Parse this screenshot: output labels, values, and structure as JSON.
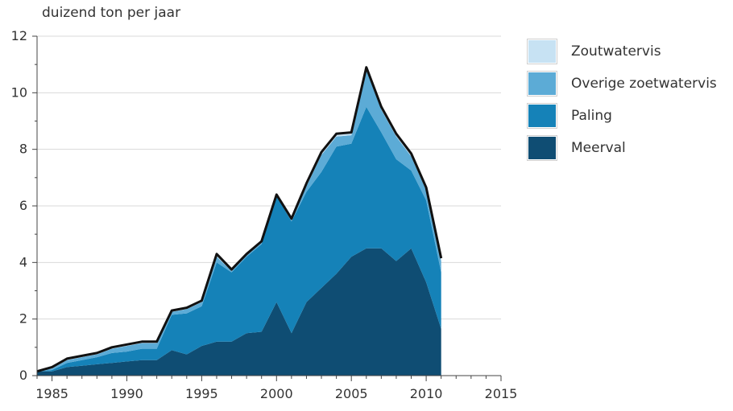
{
  "chart_data": {
    "type": "area",
    "ylabel": "duizend ton per jaar",
    "xlim": [
      1984,
      2015
    ],
    "ylim": [
      0,
      12
    ],
    "x_ticks": [
      1985,
      1990,
      1995,
      2000,
      2005,
      2010,
      2015
    ],
    "y_ticks": [
      0,
      2,
      4,
      6,
      8,
      10,
      12
    ],
    "grid": true,
    "stacked": true,
    "legend_position": "right",
    "x": [
      1984,
      1985,
      1986,
      1987,
      1988,
      1989,
      1990,
      1991,
      1992,
      1993,
      1994,
      1995,
      1996,
      1997,
      1998,
      1999,
      2000,
      2001,
      2002,
      2003,
      2004,
      2005,
      2006,
      2007,
      2008,
      2009,
      2010,
      2011
    ],
    "series": [
      {
        "name": "Meerval",
        "color": "#0f4d73",
        "values": [
          0.15,
          0.15,
          0.3,
          0.35,
          0.4,
          0.45,
          0.5,
          0.55,
          0.55,
          0.9,
          0.75,
          1.05,
          1.2,
          1.2,
          1.5,
          1.55,
          2.6,
          1.5,
          2.6,
          3.1,
          3.6,
          4.2,
          4.5,
          4.5,
          4.05,
          4.5,
          3.3,
          1.65
        ]
      },
      {
        "name": "Paling",
        "color": "#1582b8",
        "values": [
          0.0,
          0.05,
          0.15,
          0.2,
          0.25,
          0.35,
          0.35,
          0.4,
          0.4,
          1.25,
          1.45,
          1.4,
          2.8,
          2.45,
          2.7,
          3.1,
          3.75,
          3.95,
          3.9,
          4.1,
          4.5,
          4.0,
          5.0,
          4.1,
          3.6,
          2.75,
          2.9,
          2.0
        ]
      },
      {
        "name": "Overige zoetwatervis",
        "color": "#5cabd6",
        "values": [
          0.0,
          0.05,
          0.1,
          0.1,
          0.1,
          0.15,
          0.2,
          0.2,
          0.2,
          0.1,
          0.15,
          0.15,
          0.2,
          0.05,
          0.05,
          0.05,
          0.0,
          0.05,
          0.2,
          0.6,
          0.35,
          0.3,
          1.3,
          0.8,
          0.8,
          0.5,
          0.35,
          0.4
        ]
      },
      {
        "name": "Zoutwatervis",
        "color": "#c7e2f3",
        "values": [
          0.0,
          0.05,
          0.05,
          0.05,
          0.05,
          0.05,
          0.05,
          0.05,
          0.05,
          0.05,
          0.05,
          0.05,
          0.1,
          0.05,
          0.05,
          0.05,
          0.05,
          0.05,
          0.1,
          0.1,
          0.1,
          0.1,
          0.1,
          0.1,
          0.1,
          0.1,
          0.1,
          0.1
        ]
      }
    ]
  },
  "legend": [
    {
      "label": "Zoutwatervis",
      "color": "#c7e2f3"
    },
    {
      "label": "Overige zoetwatervis",
      "color": "#5cabd6"
    },
    {
      "label": "Paling",
      "color": "#1582b8"
    },
    {
      "label": "Meerval",
      "color": "#0f4d73"
    }
  ]
}
